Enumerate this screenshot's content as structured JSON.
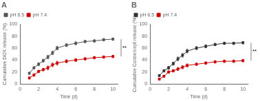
{
  "chart_data": [
    {
      "type": "line",
      "title": "A",
      "xlabel": "Time (d)",
      "ylabel": "Cumulative DOX release (%)",
      "x": [
        1,
        1.5,
        2,
        2.5,
        3,
        3.5,
        4,
        5,
        6,
        7,
        8,
        9,
        10
      ],
      "series": [
        {
          "name": "pH 6.5",
          "color": "#555555",
          "marker": "square",
          "line_style": "solid",
          "values": [
            18,
            27,
            33,
            39,
            45,
            52,
            60,
            65,
            68,
            71,
            72,
            74,
            75
          ],
          "errors": [
            1.5,
            2,
            2.5,
            2.5,
            3,
            3,
            3,
            2.5,
            2.5,
            2,
            2,
            2,
            2
          ]
        },
        {
          "name": "pH 7.4",
          "color": "#cc0000",
          "marker": "square",
          "line_style": "solid",
          "values": [
            10,
            15,
            21,
            24,
            27,
            32,
            35,
            38,
            40,
            42,
            44,
            45,
            46
          ],
          "errors": [
            1.5,
            2,
            2,
            2,
            3,
            3,
            3,
            2.5,
            2.5,
            2,
            2,
            2,
            2
          ]
        }
      ],
      "xlim": [
        0,
        10.5
      ],
      "xticks": [
        0,
        2,
        4,
        6,
        8,
        10
      ],
      "ylim": [
        0,
        100
      ],
      "yticks": [
        0,
        20,
        40,
        60,
        80,
        100
      ],
      "grid": false,
      "legend": "upper left",
      "annotations": [
        {
          "text": "**",
          "y_range": [
            46,
            75
          ]
        }
      ]
    },
    {
      "type": "line",
      "title": "B",
      "xlabel": "Time (d)",
      "ylabel": "Cumulative Conbercept release (%)",
      "x": [
        1,
        1.5,
        2,
        2.5,
        3,
        3.5,
        4,
        5,
        6,
        7,
        8,
        9,
        10
      ],
      "series": [
        {
          "name": "pH 6.5",
          "color": "#333333",
          "marker": "square",
          "line_style": "solid",
          "values": [
            14,
            22,
            27,
            34,
            42,
            48,
            55,
            60,
            63,
            66,
            68,
            68,
            69
          ],
          "errors": [
            1.5,
            2,
            2.5,
            2.5,
            3,
            3,
            3,
            2.5,
            2.5,
            2,
            2,
            2,
            2
          ]
        },
        {
          "name": "pH 7.4",
          "color": "#cc0000",
          "marker": "square",
          "line_style": "solid",
          "values": [
            8,
            13,
            20,
            22,
            25,
            28,
            31,
            33,
            35,
            37,
            38,
            38,
            39
          ],
          "errors": [
            1.5,
            1.5,
            2,
            2,
            2.5,
            2.5,
            2.5,
            2,
            2,
            2,
            2,
            2,
            2
          ]
        }
      ],
      "xlim": [
        0,
        10.5
      ],
      "xticks": [
        0,
        2,
        4,
        6,
        8,
        10
      ],
      "ylim": [
        0,
        100
      ],
      "yticks": [
        0,
        20,
        40,
        60,
        80,
        100
      ],
      "grid": false,
      "legend": "upper left",
      "annotations": [
        {
          "text": "**",
          "y_range": [
            39,
            69
          ]
        }
      ]
    }
  ]
}
